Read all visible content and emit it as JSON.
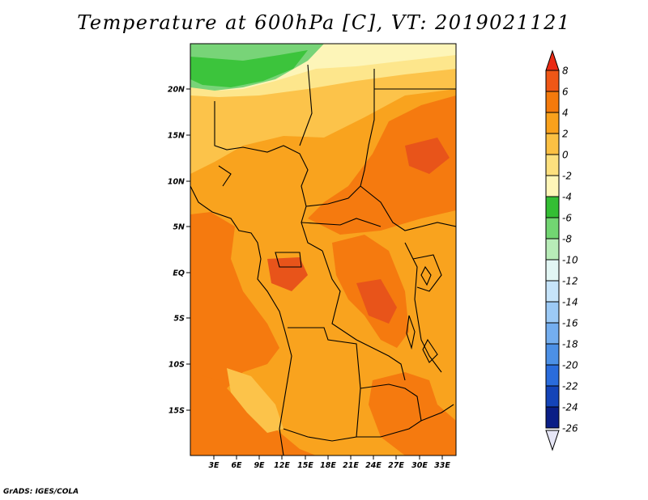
{
  "title": "Temperature at 600hPa [C], VT: 2019021121",
  "credit": "GrADS: IGES/COLA",
  "map": {
    "lat_labels": [
      "20N",
      "15N",
      "10N",
      "5N",
      "EQ",
      "5S",
      "10S",
      "15S"
    ],
    "lon_labels": [
      "3E",
      "6E",
      "9E",
      "12E",
      "15E",
      "18E",
      "21E",
      "24E",
      "27E",
      "30E",
      "33E"
    ],
    "field_colors": {
      "warm_4_6": "#f57a0f",
      "warm_2_4": "#f9a31e",
      "warm_0_2": "#fcc34a",
      "neutral_m2_0": "#fde68c",
      "cool_m4_m2": "#fdf5b8",
      "green_m6_m4": "#3cc43c",
      "green_m8_m6": "#78d478",
      "hot_6_8": "#e8541a"
    }
  },
  "colorbar": {
    "labels": [
      "8",
      "6",
      "4",
      "2",
      "0",
      "-2",
      "-4",
      "-6",
      "-8",
      "-10",
      "-12",
      "-14",
      "-16",
      "-18",
      "-20",
      "-22",
      "-24",
      "-26"
    ],
    "colors": [
      "#ea2a14",
      "#ef5716",
      "#f47a0c",
      "#f9a11c",
      "#fbc043",
      "#fde07e",
      "#fff6b8",
      "#34be34",
      "#72d572",
      "#b8ecb8",
      "#e2f6f4",
      "#c6e4fa",
      "#9ccaf6",
      "#74aeef",
      "#4c90e6",
      "#2a6cdc",
      "#1444b8",
      "#0a1e86",
      "#060a4c",
      "#e6e6f6"
    ]
  }
}
